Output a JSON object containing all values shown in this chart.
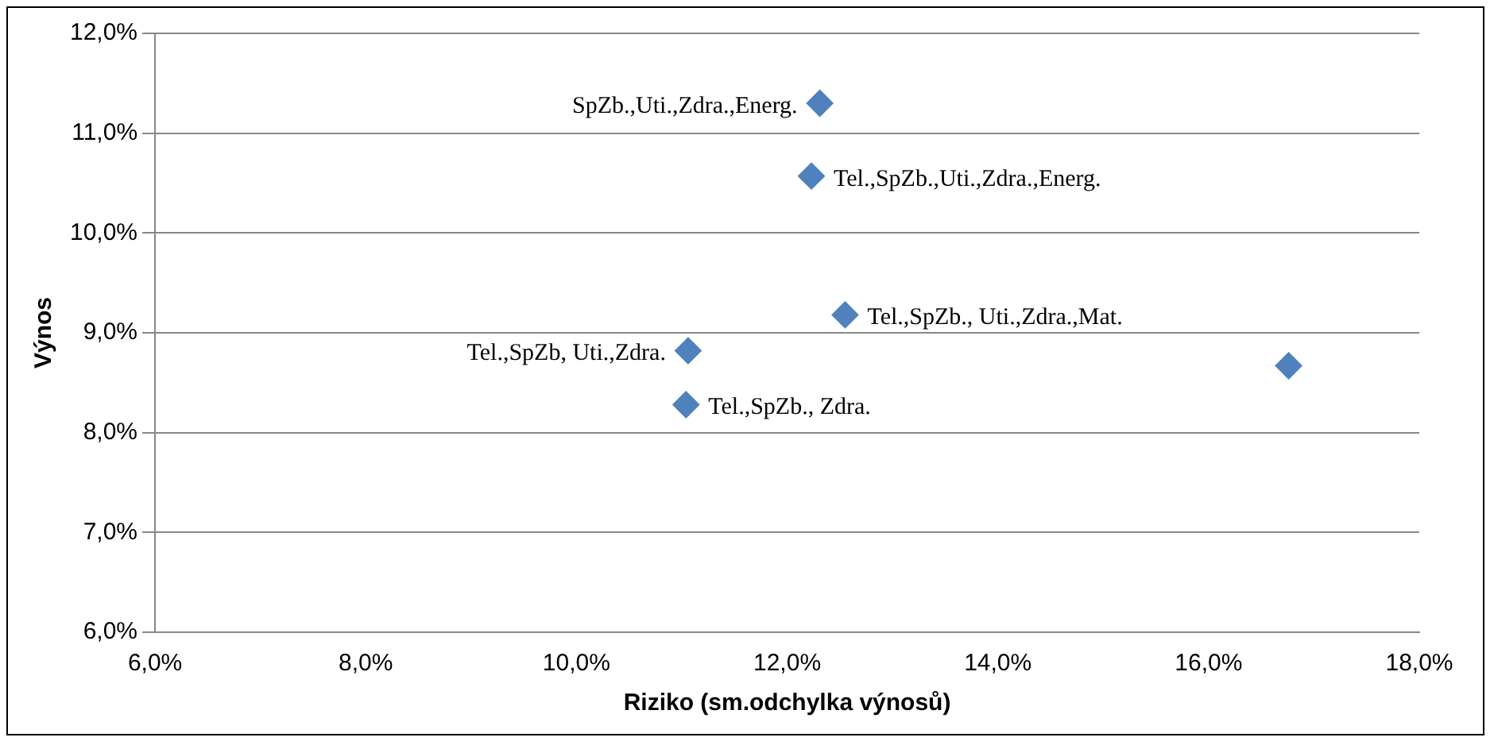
{
  "chart_data": {
    "type": "scatter",
    "xlabel": "Riziko (sm.odchylka výnosů)",
    "ylabel": "Výnos",
    "x": [
      12.31,
      12.23,
      12.55,
      11.06,
      11.04,
      16.76
    ],
    "values": [
      11.3,
      10.57,
      9.18,
      8.82,
      8.28,
      8.67
    ],
    "color": "#4f81bd",
    "marker": "diamond",
    "grid": "y",
    "legend": false,
    "xlim": [
      6,
      18
    ],
    "xticks": [
      {
        "value": 6,
        "label": "6,0%"
      },
      {
        "value": 8,
        "label": "8,0%"
      },
      {
        "value": 10,
        "label": "10,0%"
      },
      {
        "value": 12,
        "label": "12,0%"
      },
      {
        "value": 14,
        "label": "14,0%"
      },
      {
        "value": 16,
        "label": "16,0%"
      },
      {
        "value": 18,
        "label": "18,0%"
      }
    ],
    "ylim": [
      6,
      12
    ],
    "yticks": [
      {
        "value": 6,
        "label": "6,0%"
      },
      {
        "value": 7,
        "label": "7,0%"
      },
      {
        "value": 8,
        "label": "8,0%"
      },
      {
        "value": 9,
        "label": "9,0%"
      },
      {
        "value": 10,
        "label": "10,0%"
      },
      {
        "value": 11,
        "label": "11,0%"
      },
      {
        "value": 12,
        "label": "12,0%"
      }
    ],
    "annotations": [
      {
        "text": "SpZb.,Uti.,Zdra.,Energ.",
        "x": 12.31,
        "y": 11.3
      },
      {
        "text": "Tel.,SpZb.,Uti.,Zdra.,Energ.",
        "x": 12.23,
        "y": 10.57
      },
      {
        "text": "Tel.,SpZb., Uti.,Zdra.,Mat.",
        "x": 12.55,
        "y": 9.18
      },
      {
        "text": "Tel.,SpZb, Uti.,Zdra.",
        "x": 11.06,
        "y": 8.82
      },
      {
        "text": "Tel.,SpZb., Zdra.",
        "x": 11.04,
        "y": 8.28
      }
    ]
  }
}
